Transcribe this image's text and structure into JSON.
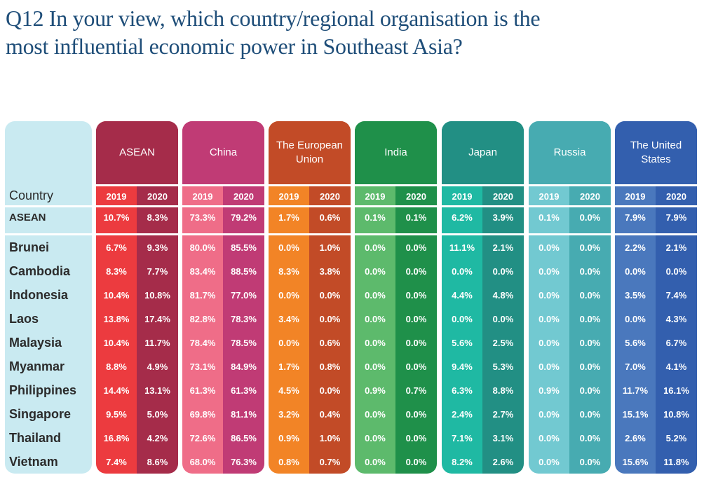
{
  "title": "Q12 In your view, which country/regional organisation is the most influential economic power in Southeast Asia?",
  "title_lines": [
    "Q12 In your view, which country/regional organisation is the",
    "most influential economic power in Southeast Asia?"
  ],
  "row_header": "Country",
  "years": [
    "2019",
    "2020"
  ],
  "columns": [
    {
      "label": "ASEAN",
      "color_2019": "#ec3b3f",
      "color_2020": "#a52c4a",
      "header_color": "#a52c4a"
    },
    {
      "label": "China",
      "color_2019": "#ef6d88",
      "color_2020": "#c03b75",
      "header_color": "#c03b75"
    },
    {
      "label": "The European Union",
      "color_2019": "#f28426",
      "color_2020": "#c24b27",
      "header_color": "#c24b27"
    },
    {
      "label": "India",
      "color_2019": "#5dba6c",
      "color_2020": "#1f904a",
      "header_color": "#1f904a"
    },
    {
      "label": "Japan",
      "color_2019": "#1fb9a3",
      "color_2020": "#228f84",
      "header_color": "#228f84"
    },
    {
      "label": "Russia",
      "color_2019": "#72c9d1",
      "color_2020": "#47abb1",
      "header_color": "#47abb1"
    },
    {
      "label": "The United States",
      "color_2019": "#4a78bd",
      "color_2020": "#335fae",
      "header_color": "#335fae"
    }
  ],
  "chart_data": {
    "type": "table",
    "title": "Q12 In your view, which country/regional organisation is the most influential economic power in Southeast Asia?",
    "row_header": "Country",
    "column_groups": [
      "ASEAN",
      "China",
      "The European Union",
      "India",
      "Japan",
      "Russia",
      "The United States"
    ],
    "sub_columns": [
      "2019",
      "2020"
    ],
    "rows": [
      {
        "country": "ASEAN",
        "values": [
          "10.7%",
          "8.3%",
          "73.3%",
          "79.2%",
          "1.7%",
          "0.6%",
          "0.1%",
          "0.1%",
          "6.2%",
          "3.9%",
          "0.1%",
          "0.0%",
          "7.9%",
          "7.9%"
        ]
      },
      {
        "country": "Brunei",
        "values": [
          "6.7%",
          "9.3%",
          "80.0%",
          "85.5%",
          "0.0%",
          "1.0%",
          "0.0%",
          "0.0%",
          "11.1%",
          "2.1%",
          "0.0%",
          "0.0%",
          "2.2%",
          "2.1%"
        ]
      },
      {
        "country": "Cambodia",
        "values": [
          "8.3%",
          "7.7%",
          "83.4%",
          "88.5%",
          "8.3%",
          "3.8%",
          "0.0%",
          "0.0%",
          "0.0%",
          "0.0%",
          "0.0%",
          "0.0%",
          "0.0%",
          "0.0%"
        ]
      },
      {
        "country": "Indonesia",
        "values": [
          "10.4%",
          "10.8%",
          "81.7%",
          "77.0%",
          "0.0%",
          "0.0%",
          "0.0%",
          "0.0%",
          "4.4%",
          "4.8%",
          "0.0%",
          "0.0%",
          "3.5%",
          "7.4%"
        ]
      },
      {
        "country": "Laos",
        "values": [
          "13.8%",
          "17.4%",
          "82.8%",
          "78.3%",
          "3.4%",
          "0.0%",
          "0.0%",
          "0.0%",
          "0.0%",
          "0.0%",
          "0.0%",
          "0.0%",
          "0.0%",
          "4.3%"
        ]
      },
      {
        "country": "Malaysia",
        "values": [
          "10.4%",
          "11.7%",
          "78.4%",
          "78.5%",
          "0.0%",
          "0.6%",
          "0.0%",
          "0.0%",
          "5.6%",
          "2.5%",
          "0.0%",
          "0.0%",
          "5.6%",
          "6.7%"
        ]
      },
      {
        "country": "Myanmar",
        "values": [
          "8.8%",
          "4.9%",
          "73.1%",
          "84.9%",
          "1.7%",
          "0.8%",
          "0.0%",
          "0.0%",
          "9.4%",
          "5.3%",
          "0.0%",
          "0.0%",
          "7.0%",
          "4.1%"
        ]
      },
      {
        "country": "Philippines",
        "values": [
          "14.4%",
          "13.1%",
          "61.3%",
          "61.3%",
          "4.5%",
          "0.0%",
          "0.9%",
          "0.7%",
          "6.3%",
          "8.8%",
          "0.9%",
          "0.0%",
          "11.7%",
          "16.1%"
        ]
      },
      {
        "country": "Singapore",
        "values": [
          "9.5%",
          "5.0%",
          "69.8%",
          "81.1%",
          "3.2%",
          "0.4%",
          "0.0%",
          "0.0%",
          "2.4%",
          "2.7%",
          "0.0%",
          "0.0%",
          "15.1%",
          "10.8%"
        ]
      },
      {
        "country": "Thailand",
        "values": [
          "16.8%",
          "4.2%",
          "72.6%",
          "86.5%",
          "0.9%",
          "1.0%",
          "0.0%",
          "0.0%",
          "7.1%",
          "3.1%",
          "0.0%",
          "0.0%",
          "2.6%",
          "5.2%"
        ]
      },
      {
        "country": "Vietnam",
        "values": [
          "7.4%",
          "8.6%",
          "68.0%",
          "76.3%",
          "0.8%",
          "0.7%",
          "0.0%",
          "0.0%",
          "8.2%",
          "2.6%",
          "0.0%",
          "0.0%",
          "15.6%",
          "11.8%"
        ]
      }
    ]
  }
}
